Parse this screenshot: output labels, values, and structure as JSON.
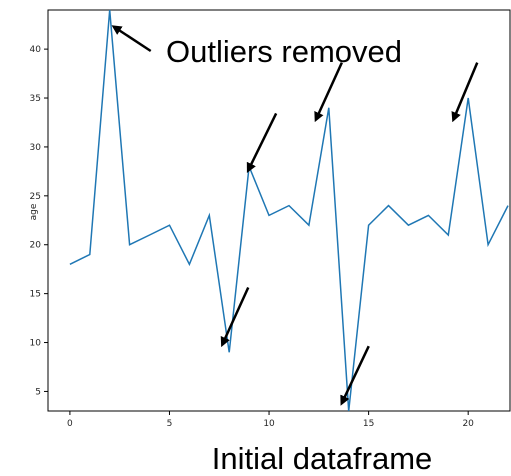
{
  "chart_data": {
    "type": "line",
    "title": "",
    "xlabel": "",
    "ylabel": "age",
    "x": [
      0,
      1,
      2,
      3,
      4,
      5,
      6,
      7,
      8,
      9,
      10,
      11,
      12,
      13,
      14,
      15,
      16,
      17,
      18,
      19,
      20,
      21,
      22
    ],
    "series": [
      {
        "values": [
          18,
          19,
          44,
          20,
          21,
          22,
          18,
          23,
          9,
          28,
          23,
          24,
          22,
          34,
          3,
          22,
          24,
          22,
          23,
          21,
          35,
          20,
          24
        ],
        "color": "#1f77b4"
      }
    ],
    "xlim": [
      -1.1,
      22.1
    ],
    "ylim": [
      3,
      44
    ],
    "xticks": [
      0,
      5,
      10,
      15,
      20
    ],
    "yticks": [
      5,
      10,
      15,
      20,
      25,
      30,
      35,
      40
    ],
    "grid": false,
    "annotations": [
      {
        "text": "Outliers removed",
        "target_x": 2,
        "target_y": 44
      }
    ],
    "arrow_targets": [
      {
        "x": 2,
        "y": 44
      },
      {
        "x": 9,
        "y": 28
      },
      {
        "x": 12.4,
        "y": 33
      },
      {
        "x": 19.3,
        "y": 33
      },
      {
        "x": 7.7,
        "y": 10
      },
      {
        "x": 13.7,
        "y": 4
      }
    ],
    "caption": "Initial dataframe"
  }
}
